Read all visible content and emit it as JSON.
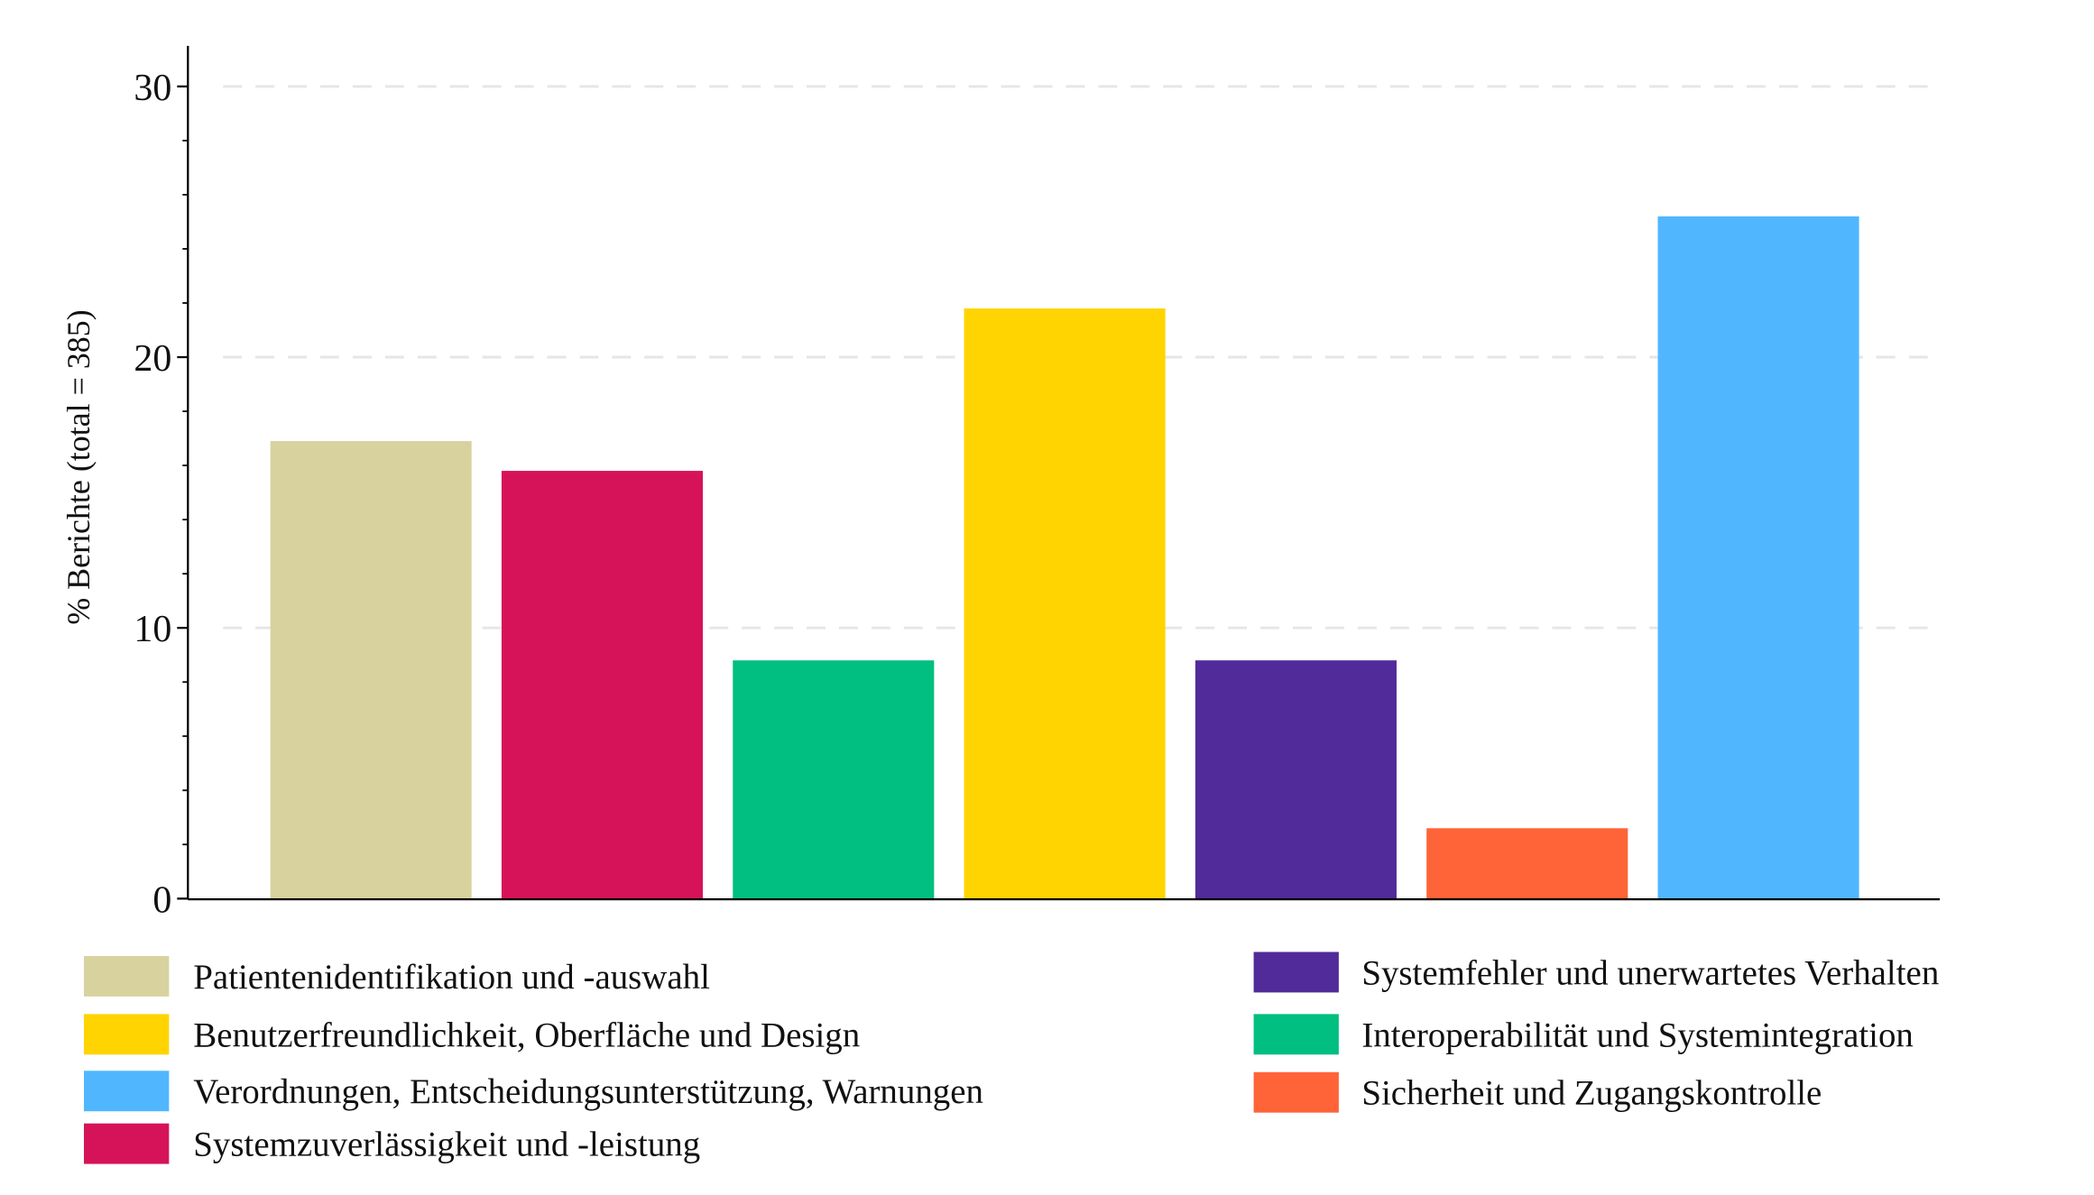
{
  "chart_data": {
    "type": "bar",
    "ylabel": "% Berichte (total = 385)",
    "ylim": [
      0,
      31.5
    ],
    "yticks": [
      0,
      10,
      20,
      30
    ],
    "grid": "horizontal dashed",
    "legend_position": "bottom",
    "categories": [
      "Patientenidentifikation und -auswahl",
      "Systemzuverlässigkeit und -leistung",
      "Interoperabilität und Systemintegration",
      "Benutzerfreundlichkeit, Oberfläche und Design",
      "Systemfehler und unerwartetes Verhalten",
      "Sicherheit und Zugangskontrolle",
      "Verordnungen, Entscheidungsunterstützung, Warnungen"
    ],
    "values": [
      16.9,
      15.8,
      8.8,
      21.8,
      8.8,
      2.6,
      25.2
    ],
    "colors": [
      "#d8d29f",
      "#d61358",
      "#00bf80",
      "#ffd400",
      "#512b9a",
      "#ff6338",
      "#50b7ff"
    ],
    "legend_left": [
      0,
      3,
      6,
      1
    ],
    "legend_right": [
      4,
      2,
      5
    ]
  }
}
